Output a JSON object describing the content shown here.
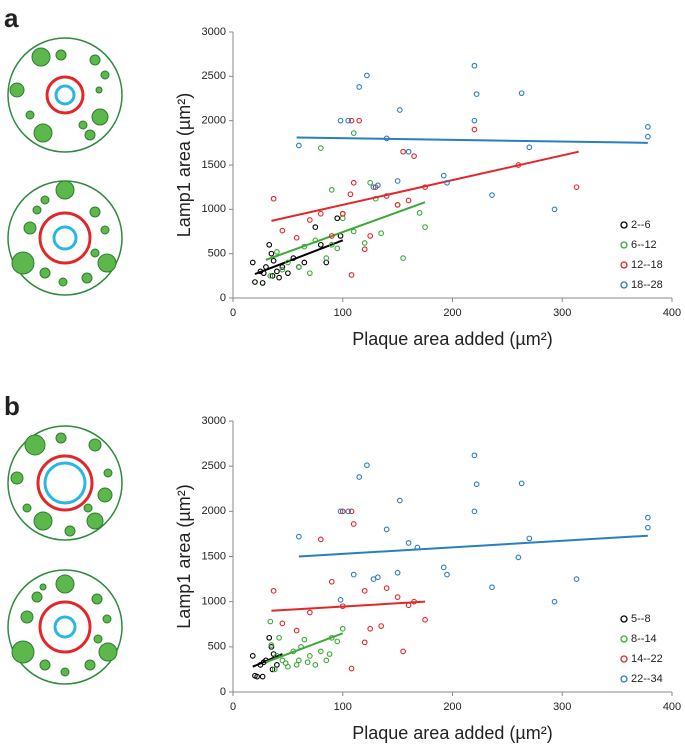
{
  "chart_data": [
    {
      "type": "scatter",
      "label": "a",
      "xlabel": "Plaque area added (µm²)",
      "ylabel": "Lamp1 area (µm²)",
      "xlim": [
        0,
        400
      ],
      "ylim": [
        0,
        3000
      ],
      "xticks": [
        0,
        100,
        200,
        300,
        400
      ],
      "yticks": [
        0,
        500,
        1000,
        1500,
        2000,
        2500,
        3000
      ],
      "series": [
        {
          "name": "2--6",
          "color": "#000000",
          "x": [
            18,
            20,
            25,
            27,
            30,
            33,
            35,
            37,
            40,
            45,
            50,
            55,
            60,
            65,
            75,
            80,
            85,
            95,
            98,
            100,
            28,
            36,
            42
          ],
          "y": [
            400,
            180,
            300,
            170,
            350,
            600,
            500,
            420,
            300,
            350,
            280,
            450,
            350,
            400,
            800,
            600,
            400,
            900,
            700,
            950,
            280,
            250,
            230
          ],
          "fit": {
            "x": [
              20,
              100
            ],
            "y": [
              270,
              650
            ]
          }
        },
        {
          "name": "6--12",
          "color": "#3aaa35",
          "x": [
            80,
            110,
            130,
            125,
            90,
            100,
            150,
            170,
            175,
            155,
            65,
            75,
            90,
            40,
            50,
            60,
            70,
            85,
            95,
            120,
            135,
            110,
            34,
            45
          ],
          "y": [
            1690,
            1860,
            1120,
            1300,
            1220,
            900,
            1050,
            960,
            800,
            450,
            580,
            650,
            600,
            520,
            400,
            350,
            280,
            450,
            560,
            620,
            730,
            750,
            250,
            320
          ],
          "fit": {
            "x": [
              30,
              175
            ],
            "y": [
              430,
              1080
            ]
          }
        },
        {
          "name": "12--18",
          "color": "#e3262a",
          "x": [
            37,
            108,
            115,
            220,
            165,
            155,
            260,
            313,
            110,
            107,
            130,
            140,
            150,
            160,
            100,
            45,
            70,
            90,
            108,
            80,
            125,
            175,
            58,
            120
          ],
          "y": [
            1120,
            2000,
            2000,
            1900,
            1600,
            1650,
            1500,
            1250,
            1300,
            1170,
            1250,
            1150,
            1050,
            1100,
            950,
            760,
            880,
            700,
            260,
            950,
            700,
            1250,
            680,
            550
          ],
          "fit": {
            "x": [
              35,
              315
            ],
            "y": [
              870,
              1650
            ]
          }
        },
        {
          "name": "18--28",
          "color": "#2a7fc1",
          "x": [
            60,
            98,
            105,
            115,
            122,
            152,
            140,
            160,
            195,
            192,
            220,
            222,
            220,
            236,
            263,
            270,
            293,
            378,
            378,
            132,
            128,
            150
          ],
          "y": [
            1720,
            2000,
            2000,
            2380,
            2510,
            2120,
            1800,
            1650,
            1300,
            1380,
            2620,
            2300,
            2000,
            1160,
            2310,
            1700,
            1000,
            1930,
            1820,
            1270,
            1250,
            1320
          ],
          "fit": {
            "x": [
              58,
              378
            ],
            "y": [
              1810,
              1750
            ]
          }
        }
      ]
    },
    {
      "type": "scatter",
      "label": "b",
      "xlabel": "Plaque area added (µm²)",
      "ylabel": "Lamp1 area (µm²)",
      "xlim": [
        0,
        400
      ],
      "ylim": [
        0,
        3000
      ],
      "xticks": [
        0,
        100,
        200,
        300,
        400
      ],
      "yticks": [
        0,
        500,
        1000,
        1500,
        2000,
        2500,
        3000
      ],
      "series": [
        {
          "name": "5--8",
          "color": "#000000",
          "x": [
            18,
            20,
            25,
            27,
            30,
            33,
            35,
            37,
            22,
            28,
            36,
            40
          ],
          "y": [
            400,
            180,
            300,
            170,
            350,
            600,
            500,
            420,
            170,
            330,
            250,
            300
          ],
          "fit": {
            "x": [
              18,
              45
            ],
            "y": [
              280,
              420
            ]
          }
        },
        {
          "name": "8--14",
          "color": "#3aaa35",
          "x": [
            35,
            40,
            45,
            50,
            55,
            60,
            65,
            70,
            75,
            80,
            85,
            90,
            95,
            100,
            38,
            48,
            58,
            68,
            88,
            34,
            42,
            62
          ],
          "y": [
            520,
            400,
            350,
            280,
            450,
            350,
            580,
            400,
            300,
            450,
            350,
            600,
            560,
            700,
            250,
            320,
            300,
            330,
            420,
            780,
            600,
            500
          ],
          "fit": {
            "x": [
              30,
              100
            ],
            "y": [
              330,
              650
            ]
          }
        },
        {
          "name": "14--22",
          "color": "#e3262a",
          "x": [
            37,
            100,
            108,
            80,
            110,
            120,
            125,
            135,
            150,
            160,
            165,
            175,
            45,
            58,
            70,
            90,
            108,
            120,
            140,
            155,
            100
          ],
          "y": [
            1120,
            2000,
            2000,
            1690,
            1860,
            1120,
            700,
            730,
            1050,
            960,
            1000,
            800,
            760,
            680,
            880,
            1220,
            260,
            550,
            1150,
            450,
            950
          ],
          "fit": {
            "x": [
              35,
              175
            ],
            "y": [
              900,
              1000
            ]
          }
        },
        {
          "name": "22--34",
          "color": "#2a7fc1",
          "x": [
            60,
            98,
            105,
            115,
            122,
            152,
            140,
            160,
            168,
            195,
            192,
            220,
            222,
            220,
            236,
            263,
            260,
            270,
            293,
            313,
            378,
            378,
            132,
            128,
            150,
            110,
            98
          ],
          "y": [
            1720,
            2000,
            2000,
            2380,
            2510,
            2120,
            1800,
            1650,
            1600,
            1300,
            1380,
            2620,
            2300,
            2000,
            1160,
            2310,
            1490,
            1700,
            1000,
            1250,
            1930,
            1820,
            1270,
            1250,
            1320,
            1300,
            1020
          ],
          "fit": {
            "x": [
              60,
              378
            ],
            "y": [
              1500,
              1730
            ]
          }
        }
      ]
    }
  ]
}
